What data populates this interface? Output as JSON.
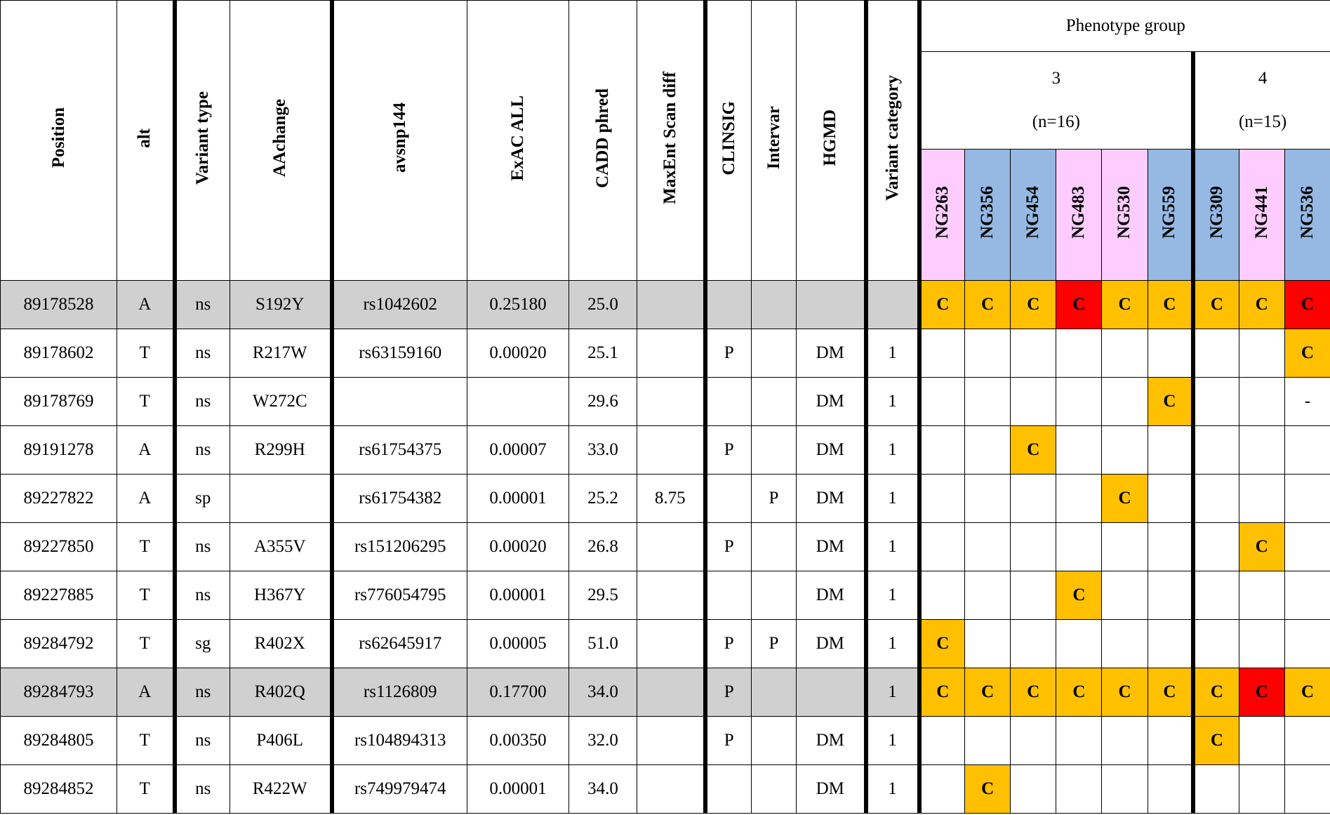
{
  "table": {
    "columns": [
      "Position",
      "alt",
      "Variant type",
      "AAchange",
      "avsnp144",
      "ExAC ALL",
      "CADD phred",
      "MaxEnt Scan diff",
      "CLINSIG",
      "Intervar",
      "HGMD",
      "Variant category"
    ],
    "phenotype_title": "Phenotype group",
    "groups": [
      {
        "label": "3",
        "n": "(n=16)",
        "samples": [
          {
            "name": "NG263",
            "color": "#ffccff"
          },
          {
            "name": "NG356",
            "color": "#95b9e3"
          },
          {
            "name": "NG454",
            "color": "#95b9e3"
          },
          {
            "name": "NG483",
            "color": "#ffccff"
          },
          {
            "name": "NG530",
            "color": "#ffccff"
          },
          {
            "name": "NG559",
            "color": "#95b9e3"
          }
        ]
      },
      {
        "label": "4",
        "n": "(n=15)",
        "samples": [
          {
            "name": "NG309",
            "color": "#95b9e3"
          },
          {
            "name": "NG441",
            "color": "#ffccff"
          },
          {
            "name": "NG536",
            "color": "#95b9e3"
          }
        ]
      }
    ],
    "rows": [
      {
        "shaded": true,
        "cells": [
          "89178528",
          "A",
          "ns",
          "S192Y",
          "rs1042602",
          "0.25180",
          "25.0",
          null,
          null,
          null,
          null,
          null
        ],
        "calls": [
          {
            "text": "C",
            "color": "#ffc000"
          },
          {
            "text": "C",
            "color": "#ffc000"
          },
          {
            "text": "C",
            "color": "#ffc000"
          },
          {
            "text": "C",
            "color": "#ff0000"
          },
          {
            "text": "C",
            "color": "#ffc000"
          },
          {
            "text": "C",
            "color": "#ffc000"
          },
          {
            "text": "C",
            "color": "#ffc000"
          },
          {
            "text": "C",
            "color": "#ffc000"
          },
          {
            "text": "C",
            "color": "#ff0000"
          }
        ]
      },
      {
        "shaded": false,
        "cells": [
          "89178602",
          "T",
          "ns",
          "R217W",
          "rs63159160",
          "0.00020",
          "25.1",
          null,
          "P",
          null,
          "DM",
          "1"
        ],
        "calls": [
          null,
          null,
          null,
          null,
          null,
          null,
          null,
          null,
          {
            "text": "C",
            "color": "#ffc000"
          }
        ]
      },
      {
        "shaded": false,
        "cells": [
          "89178769",
          "T",
          "ns",
          "W272C",
          null,
          null,
          "29.6",
          null,
          null,
          null,
          "DM",
          "1"
        ],
        "calls": [
          null,
          null,
          null,
          null,
          null,
          {
            "text": "C",
            "color": "#ffc000"
          },
          null,
          null,
          {
            "text": "-"
          }
        ]
      },
      {
        "shaded": false,
        "cells": [
          "89191278",
          "A",
          "ns",
          "R299H",
          "rs61754375",
          "0.00007",
          "33.0",
          null,
          "P",
          null,
          "DM",
          "1"
        ],
        "calls": [
          null,
          null,
          {
            "text": "C",
            "color": "#ffc000"
          },
          null,
          null,
          null,
          null,
          null,
          null
        ]
      },
      {
        "shaded": false,
        "cells": [
          "89227822",
          "A",
          "sp",
          null,
          "rs61754382",
          "0.00001",
          "25.2",
          "8.75",
          null,
          "P",
          "DM",
          "1"
        ],
        "calls": [
          null,
          null,
          null,
          null,
          {
            "text": "C",
            "color": "#ffc000"
          },
          null,
          null,
          null,
          null
        ]
      },
      {
        "shaded": false,
        "cells": [
          "89227850",
          "T",
          "ns",
          "A355V",
          "rs151206295",
          "0.00020",
          "26.8",
          null,
          "P",
          null,
          "DM",
          "1"
        ],
        "calls": [
          null,
          null,
          null,
          null,
          null,
          null,
          null,
          {
            "text": "C",
            "color": "#ffc000"
          },
          null
        ]
      },
      {
        "shaded": false,
        "cells": [
          "89227885",
          "T",
          "ns",
          "H367Y",
          "rs776054795",
          "0.00001",
          "29.5",
          null,
          null,
          null,
          "DM",
          "1"
        ],
        "calls": [
          null,
          null,
          null,
          {
            "text": "C",
            "color": "#ffc000"
          },
          null,
          null,
          null,
          null,
          null
        ]
      },
      {
        "shaded": false,
        "cells": [
          "89284792",
          "T",
          "sg",
          "R402X",
          "rs62645917",
          "0.00005",
          "51.0",
          null,
          "P",
          "P",
          "DM",
          "1"
        ],
        "calls": [
          {
            "text": "C",
            "color": "#ffc000"
          },
          null,
          null,
          null,
          null,
          null,
          null,
          null,
          null
        ]
      },
      {
        "shaded": true,
        "cells": [
          "89284793",
          "A",
          "ns",
          "R402Q",
          "rs1126809",
          "0.17700",
          "34.0",
          null,
          "P",
          null,
          null,
          "1"
        ],
        "calls": [
          {
            "text": "C",
            "color": "#ffc000"
          },
          {
            "text": "C",
            "color": "#ffc000"
          },
          {
            "text": "C",
            "color": "#ffc000"
          },
          {
            "text": "C",
            "color": "#ffc000"
          },
          {
            "text": "C",
            "color": "#ffc000"
          },
          {
            "text": "C",
            "color": "#ffc000"
          },
          {
            "text": "C",
            "color": "#ffc000"
          },
          {
            "text": "C",
            "color": "#ff0000"
          },
          {
            "text": "C",
            "color": "#ffc000"
          }
        ]
      },
      {
        "shaded": false,
        "cells": [
          "89284805",
          "T",
          "ns",
          "P406L",
          "rs104894313",
          "0.00350",
          "32.0",
          null,
          "P",
          null,
          "DM",
          "1"
        ],
        "calls": [
          null,
          null,
          null,
          null,
          null,
          null,
          {
            "text": "C",
            "color": "#ffc000"
          },
          null,
          null
        ]
      },
      {
        "shaded": false,
        "cells": [
          "89284852",
          "T",
          "ns",
          "R422W",
          "rs749979474",
          "0.00001",
          "34.0",
          null,
          null,
          null,
          "DM",
          "1"
        ],
        "calls": [
          null,
          {
            "text": "C",
            "color": "#ffc000"
          },
          null,
          null,
          null,
          null,
          null,
          null,
          null
        ]
      }
    ]
  }
}
